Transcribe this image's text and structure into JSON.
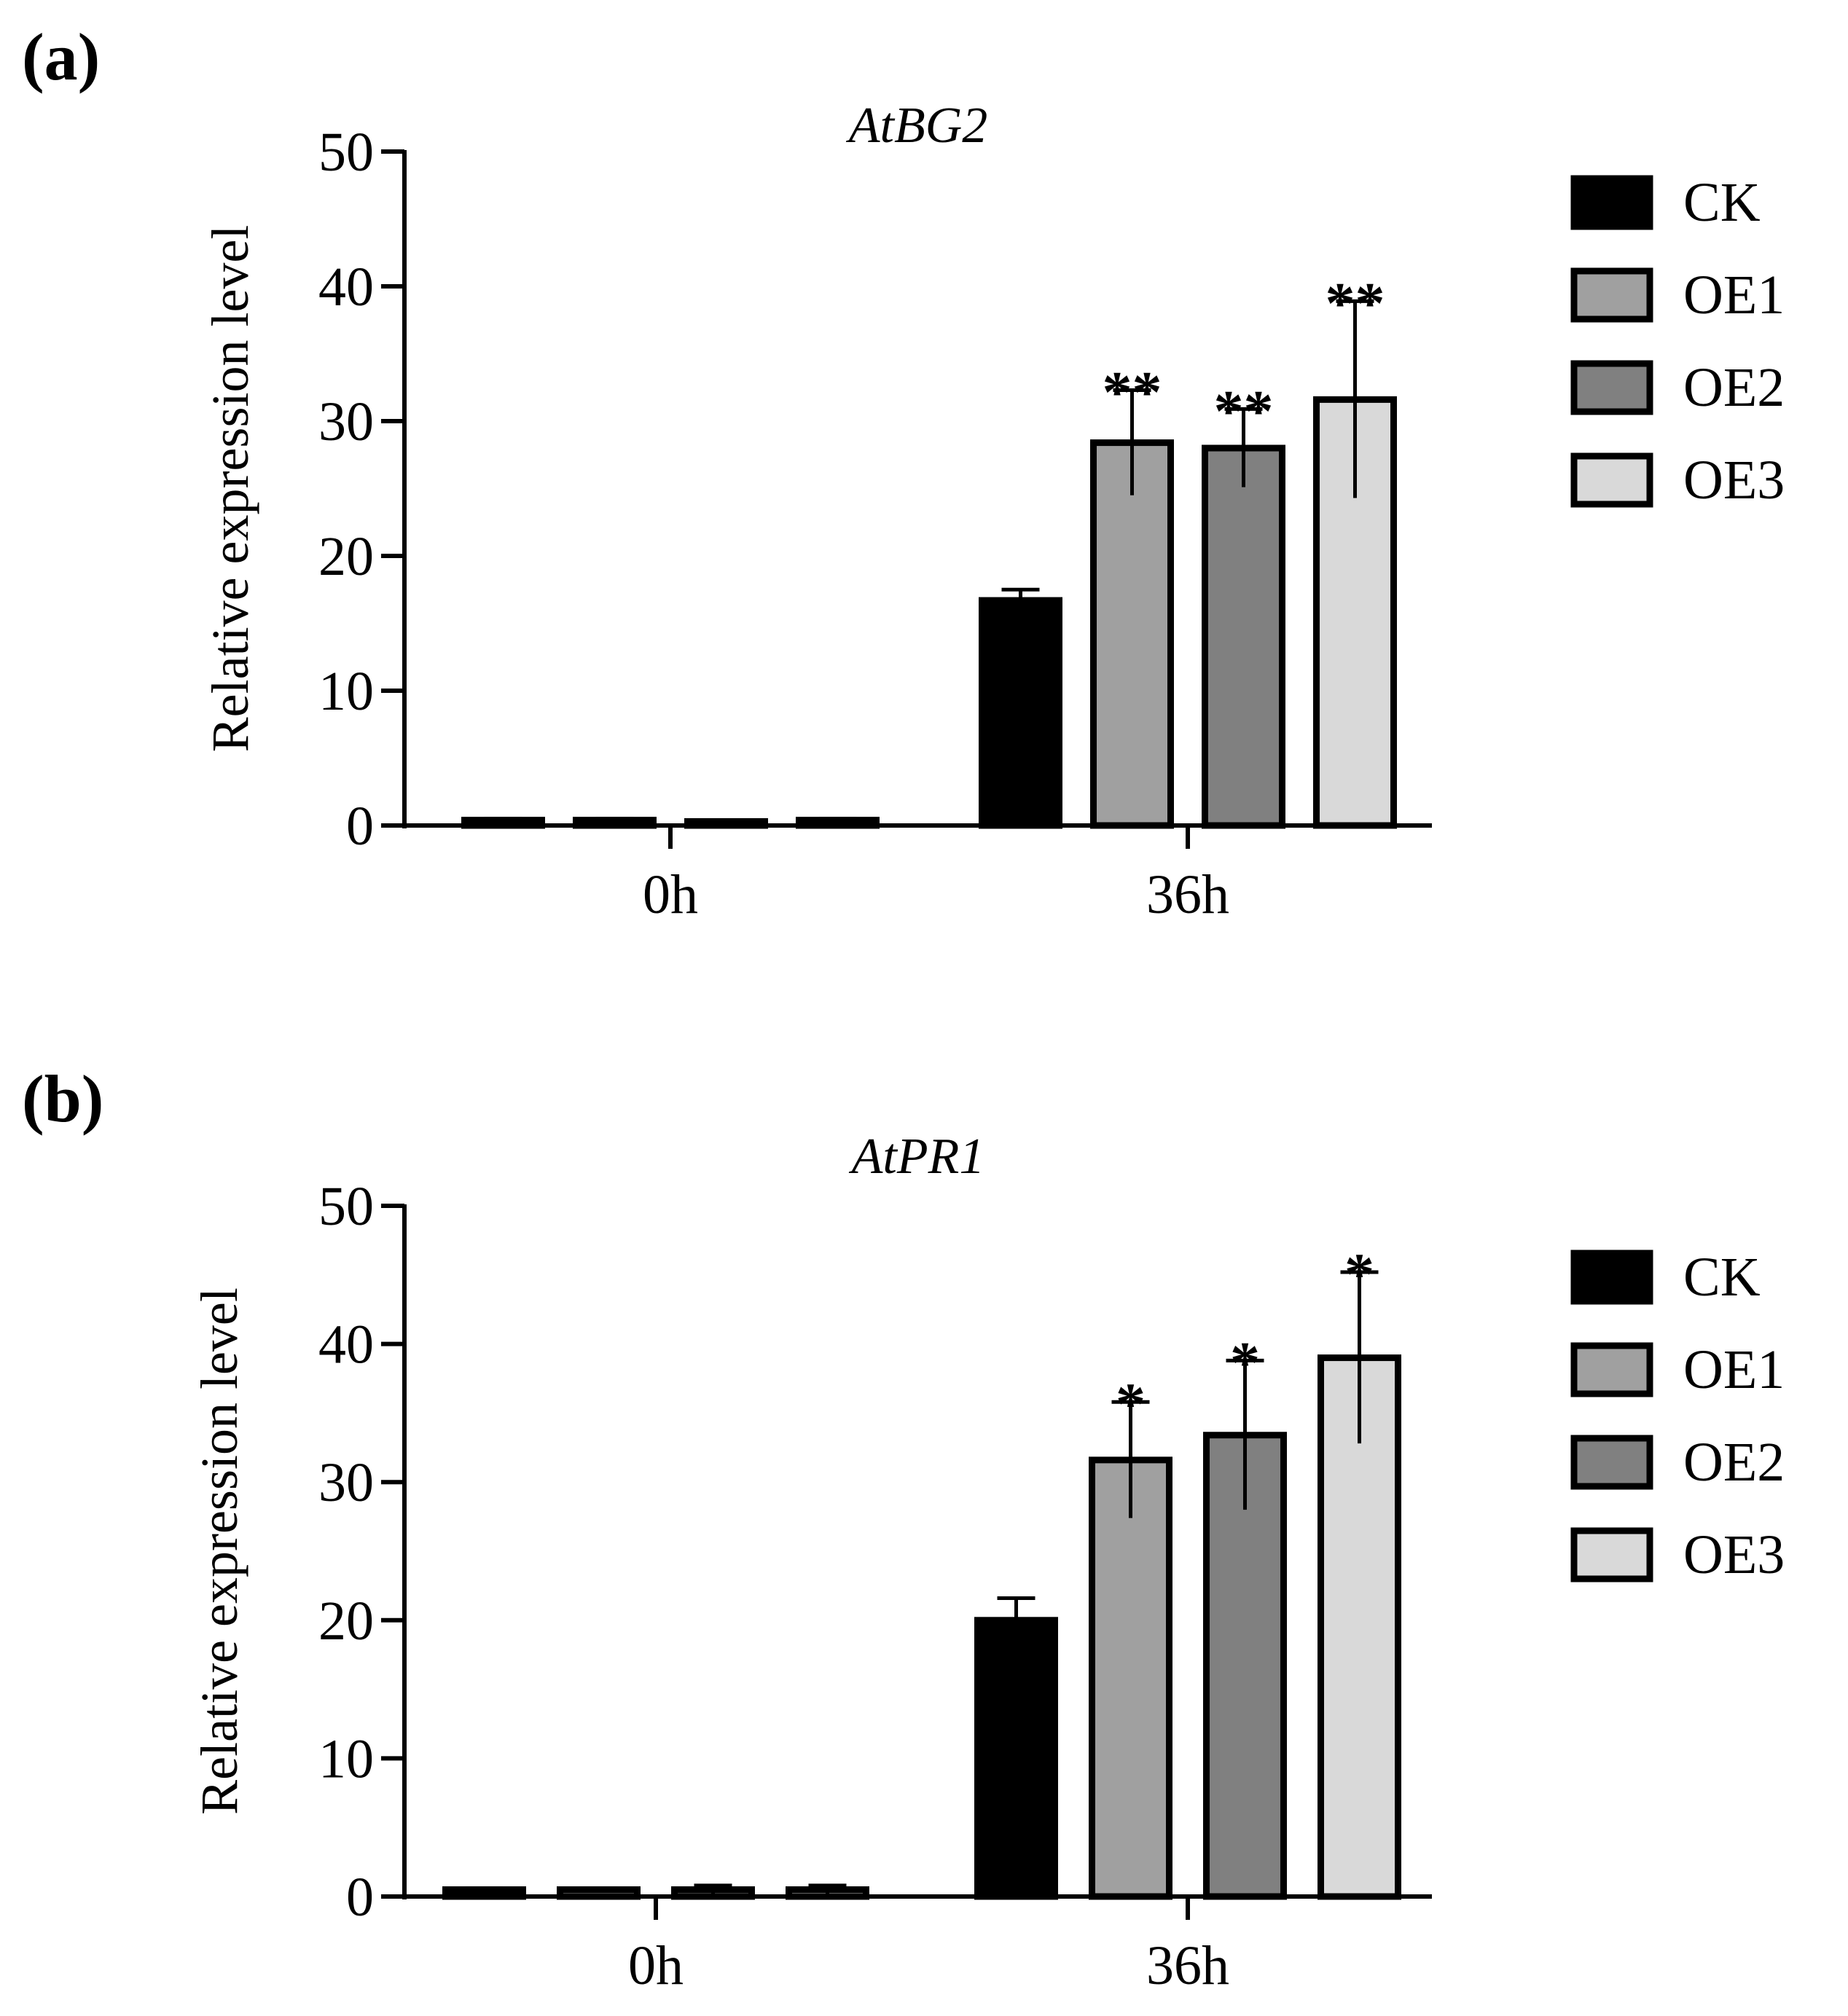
{
  "chart_data": [
    {
      "type": "bar",
      "panel_label": "(a)",
      "title": "AtBG2",
      "xlabel": "",
      "ylabel": "Relative expression level",
      "ylim": [
        0,
        50
      ],
      "yticks": [
        "0",
        "10",
        "20",
        "30",
        "40",
        "50"
      ],
      "categories": [
        "0h",
        "36h"
      ],
      "series": [
        {
          "name": "CK",
          "color": "#000000",
          "values": [
            0.4,
            16.7
          ],
          "errors": [
            0.1,
            0.8
          ],
          "significance": [
            "",
            ""
          ]
        },
        {
          "name": "OE1",
          "color": "#a0a0a0",
          "values": [
            0.4,
            28.4
          ],
          "errors": [
            0.1,
            3.9
          ],
          "significance": [
            "",
            "**"
          ]
        },
        {
          "name": "OE2",
          "color": "#808080",
          "values": [
            0.3,
            28.0
          ],
          "errors": [
            0.1,
            2.9
          ],
          "significance": [
            "",
            "**"
          ]
        },
        {
          "name": "OE3",
          "color": "#d9d9d9",
          "values": [
            0.4,
            31.6
          ],
          "errors": [
            0.1,
            7.3
          ],
          "significance": [
            "",
            "**"
          ]
        }
      ],
      "legend_position": "right"
    },
    {
      "type": "bar",
      "panel_label": "(b)",
      "title": "AtPR1",
      "xlabel": "",
      "ylabel": "Relative expression level",
      "ylim": [
        0,
        50
      ],
      "yticks": [
        "0",
        "10",
        "20",
        "30",
        "40",
        "50"
      ],
      "categories": [
        "0h",
        "36h"
      ],
      "series": [
        {
          "name": "CK",
          "color": "#000000",
          "values": [
            0.5,
            20.0
          ],
          "errors": [
            0.1,
            1.6
          ],
          "significance": [
            "",
            ""
          ]
        },
        {
          "name": "OE1",
          "color": "#a0a0a0",
          "values": [
            0.5,
            31.6
          ],
          "errors": [
            0.1,
            4.2
          ],
          "significance": [
            "",
            "*"
          ]
        },
        {
          "name": "OE2",
          "color": "#808080",
          "values": [
            0.5,
            33.4
          ],
          "errors": [
            0.3,
            5.4
          ],
          "significance": [
            "",
            "*"
          ]
        },
        {
          "name": "OE3",
          "color": "#d9d9d9",
          "values": [
            0.5,
            39.0
          ],
          "errors": [
            0.3,
            6.2
          ],
          "significance": [
            "",
            "*"
          ]
        }
      ],
      "legend_position": "right"
    }
  ]
}
